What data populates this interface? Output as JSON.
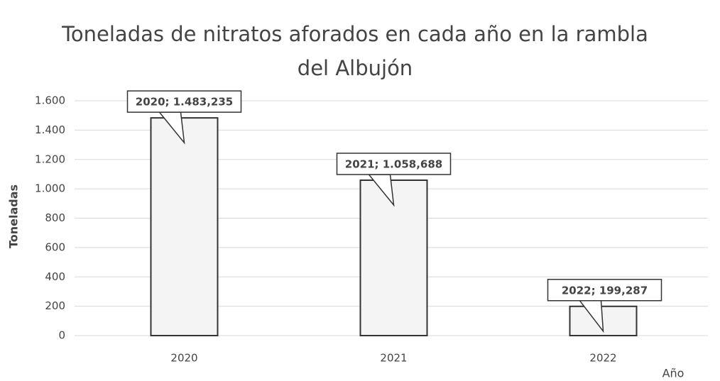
{
  "chart_data": {
    "type": "bar",
    "title": [
      "Toneladas de nitratos aforados en cada año en la rambla",
      "del Albujón"
    ],
    "x_label": "Año",
    "y_label": "Toneladas",
    "categories": [
      "2020",
      "2021",
      "2022"
    ],
    "values": [
      1483.235,
      1058.688,
      199.287
    ],
    "value_labels": [
      "2020; 1.483,235",
      "2021; 1.058,688",
      "2022; 199,287"
    ],
    "color": "#f4f4f4",
    "ylim": [
      0,
      1600
    ],
    "yticks": [
      0,
      200,
      400,
      600,
      800,
      {
        "value": 1000,
        "label": "1.000"
      },
      {
        "value": 1200,
        "label": "1.200"
      },
      {
        "value": 1400,
        "label": "1.400"
      },
      {
        "value": 1600,
        "label": "1.600"
      }
    ],
    "grid": true
  }
}
